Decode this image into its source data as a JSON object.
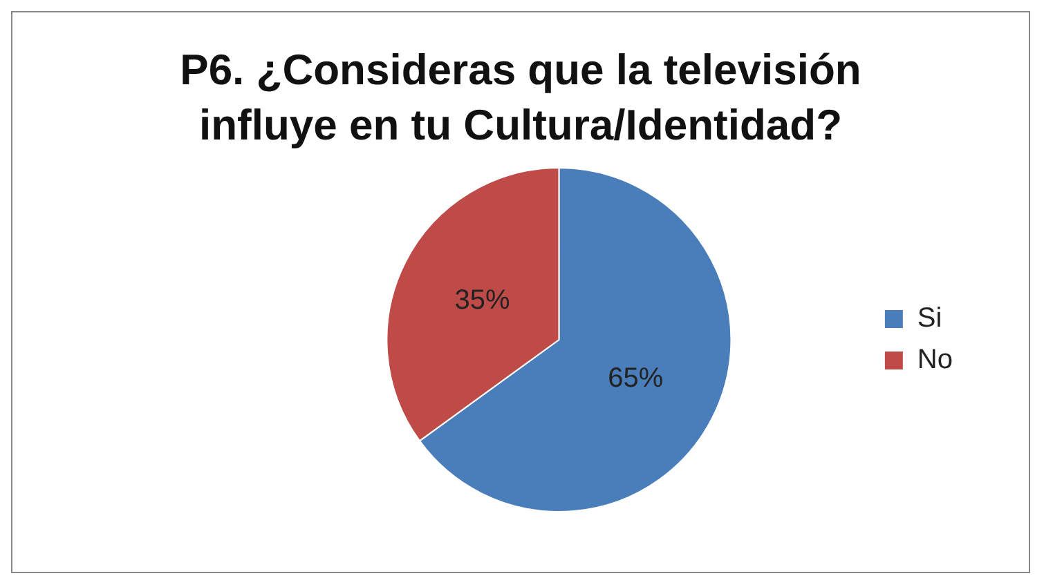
{
  "chart_data": {
    "type": "pie",
    "title": "P6. ¿Consideras que la televisión influye en tu Cultura/Identidad?",
    "categories": [
      "Si",
      "No"
    ],
    "values": [
      65,
      35
    ],
    "colors": [
      "#4a7ebb",
      "#be4b48"
    ],
    "value_labels": [
      "65%",
      "35%"
    ],
    "legend": "right"
  }
}
